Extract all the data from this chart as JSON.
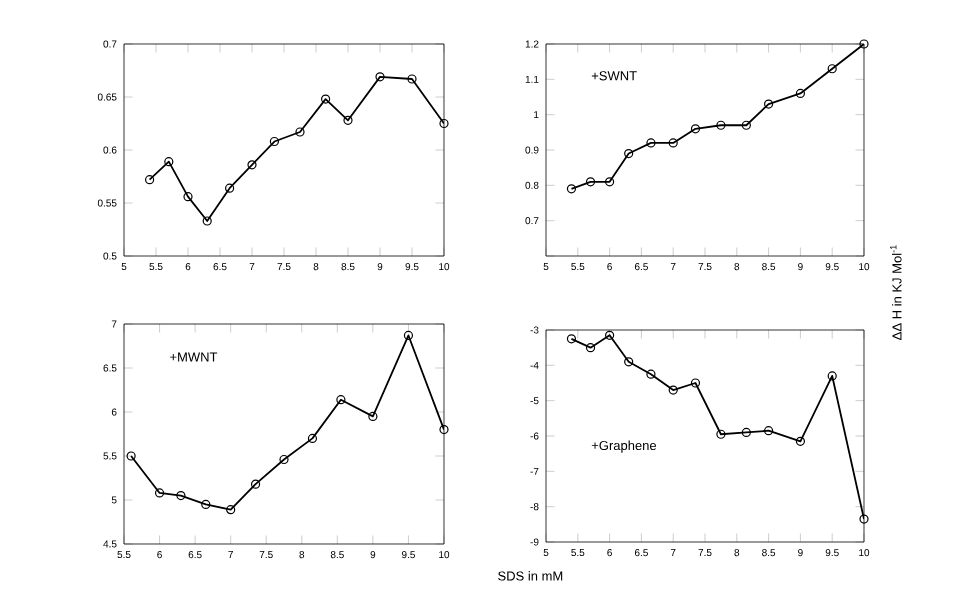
{
  "chart_data": [
    {
      "type": "line",
      "marker": "circle",
      "xlim": [
        5,
        10
      ],
      "ylim": [
        0.5,
        0.7
      ],
      "xticks": [
        5,
        5.5,
        6,
        6.5,
        7,
        7.5,
        8,
        8.5,
        9,
        9.5,
        10
      ],
      "yticks": [
        0.5,
        0.55,
        0.6,
        0.65,
        0.7
      ],
      "x": [
        5.4,
        5.7,
        6,
        6.3,
        6.65,
        7,
        7.35,
        7.75,
        8.15,
        8.5,
        9,
        9.5,
        10
      ],
      "series": [
        {
          "color": "#000000",
          "values": [
            0.572,
            0.589,
            0.556,
            0.533,
            0.564,
            0.586,
            0.608,
            0.617,
            0.648,
            0.628,
            0.669,
            0.667,
            0.625
          ]
        }
      ]
    },
    {
      "type": "line",
      "marker": "circle",
      "xlim": [
        5,
        10
      ],
      "ylim": [
        0.6,
        1.2
      ],
      "ylabel": "ΔΔ H in KJ Mol$^{-1}$",
      "annotations": [
        "+SWNT"
      ],
      "xticks": [
        5,
        5.5,
        6,
        6.5,
        7,
        7.5,
        8,
        8.5,
        9,
        9.5,
        10
      ],
      "yticks": [
        {
          "value": 0.6,
          "label": null
        },
        0.7,
        0.8,
        0.9,
        1,
        1.1,
        1.2
      ],
      "x": [
        5.4,
        5.7,
        6,
        6.3,
        6.65,
        7,
        7.35,
        7.75,
        8.15,
        8.5,
        9,
        9.5,
        10
      ],
      "series": [
        {
          "color": "#000000",
          "values": [
            0.79,
            0.81,
            0.81,
            0.89,
            0.92,
            0.92,
            0.96,
            0.97,
            0.97,
            1.03,
            1.06,
            1.13,
            1.2
          ]
        }
      ]
    },
    {
      "type": "line",
      "marker": "circle",
      "xlim": [
        5.5,
        10
      ],
      "ylim": [
        4.5,
        7
      ],
      "xlabel": "SDS in mM",
      "annotations": [
        "+MWNT"
      ],
      "xticks": [
        5.5,
        6,
        6.5,
        7,
        7.5,
        8,
        8.5,
        9,
        9.5,
        10
      ],
      "yticks": [
        4.5,
        5,
        5.5,
        6,
        6.5,
        7
      ],
      "x": [
        5.6,
        6,
        6.3,
        6.65,
        7,
        7.35,
        7.75,
        8.15,
        8.55,
        9,
        9.5,
        10
      ],
      "series": [
        {
          "color": "#000000",
          "values": [
            5.5,
            5.08,
            5.05,
            4.95,
            4.89,
            5.18,
            5.46,
            5.7,
            6.14,
            5.95,
            6.87,
            5.8
          ]
        }
      ]
    },
    {
      "type": "line",
      "marker": "circle",
      "xlim": [
        5,
        10
      ],
      "ylim": [
        -9,
        -3
      ],
      "annotations": [
        "+Graphene"
      ],
      "xticks": [
        5,
        5.5,
        6,
        6.5,
        7,
        7.5,
        8,
        8.5,
        9,
        9.5,
        10
      ],
      "yticks": [
        -9,
        -8,
        -7,
        -6,
        -5,
        -4,
        -3
      ],
      "x": [
        5.4,
        5.7,
        6,
        6.3,
        6.65,
        7,
        7.35,
        7.75,
        8.15,
        8.5,
        9,
        9.5,
        10
      ],
      "series": [
        {
          "color": "#000000",
          "values": [
            -3.25,
            -3.5,
            -3.15,
            -3.9,
            -4.25,
            -4.7,
            -4.5,
            -5.95,
            -5.9,
            -5.85,
            -6.15,
            -4.3,
            -8.35
          ]
        }
      ]
    }
  ]
}
